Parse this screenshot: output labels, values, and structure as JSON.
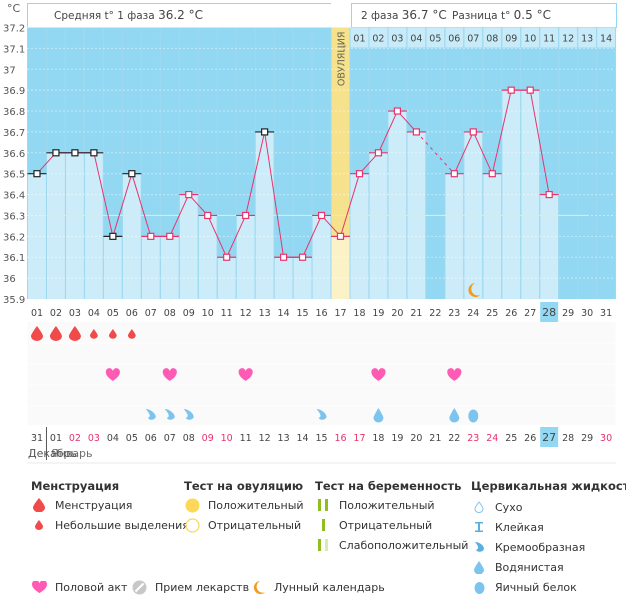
{
  "header": {
    "unit": "°C",
    "phase1_label": "Средняя t° 1 фаза",
    "phase1_value": "36.2 °C",
    "phase2_label": "2 фаза",
    "phase2_value": "36.7 °C",
    "diff_label": "Разница t°",
    "diff_value": "0.5 °C",
    "ovulation_label": "ОВУЛЯЦИЯ"
  },
  "colors": {
    "plot_bg": "#93d8f2",
    "bar_fill": "#ccecfa",
    "line": "#e8336b",
    "coverline": "#f3e9a0",
    "ovulation": "#f6e28c",
    "menstruation": "#f04a4a",
    "heart": "#ff5bb5",
    "fluid": "#7cc4ee",
    "moon": "#f39b1c",
    "weekend": "#e8336b",
    "today": "#93d8f2"
  },
  "chart_data": {
    "type": "line",
    "title": "",
    "ylabel": "°C",
    "ylim": [
      35.9,
      37.2
    ],
    "yticks": [
      "37.2",
      "37.1",
      "37",
      "36.9",
      "36.8",
      "36.7",
      "36.6",
      "36.5",
      "36.4",
      "36.3",
      "36.2",
      "36.1",
      "36",
      "35.9"
    ],
    "cycle_days": [
      "01",
      "02",
      "03",
      "04",
      "05",
      "06",
      "07",
      "08",
      "09",
      "10",
      "11",
      "12",
      "13",
      "14",
      "15",
      "16",
      "17",
      "18",
      "19",
      "20",
      "21",
      "22",
      "23",
      "24",
      "25",
      "26",
      "27",
      "28",
      "29",
      "30",
      "31"
    ],
    "temperatures": [
      36.5,
      36.6,
      36.6,
      36.6,
      36.2,
      36.5,
      36.2,
      36.2,
      36.4,
      36.3,
      36.1,
      36.3,
      36.7,
      36.1,
      36.1,
      36.3,
      36.2,
      36.5,
      36.6,
      36.8,
      36.7,
      null,
      36.5,
      36.7,
      36.5,
      36.9,
      36.9,
      36.4,
      null,
      null,
      null
    ],
    "black_markers_days": [
      1,
      2,
      3,
      4,
      5,
      6,
      13
    ],
    "coverline": 36.3,
    "coverline_until_day": 30,
    "ovulation_day": 17,
    "luteal_days": [
      "01",
      "02",
      "03",
      "04",
      "05",
      "06",
      "07",
      "08",
      "09",
      "10",
      "11",
      "12",
      "13",
      "14"
    ],
    "today_cycle_day": 28,
    "moon_day": 24
  },
  "calendar": {
    "dates": [
      "31",
      "01",
      "02",
      "03",
      "04",
      "05",
      "06",
      "07",
      "08",
      "09",
      "10",
      "11",
      "12",
      "13",
      "14",
      "15",
      "16",
      "17",
      "18",
      "19",
      "20",
      "21",
      "22",
      "23",
      "24",
      "25",
      "26",
      "27",
      "28",
      "29",
      "30"
    ],
    "weekend_days": [
      3,
      4,
      10,
      11,
      17,
      18,
      24,
      25,
      31
    ],
    "today_index": 28,
    "month_prev": "Декабрь",
    "month_next": "Январь"
  },
  "events": {
    "menstruation": [
      {
        "day": 1,
        "type": "heavy"
      },
      {
        "day": 2,
        "type": "heavy"
      },
      {
        "day": 3,
        "type": "heavy"
      },
      {
        "day": 4,
        "type": "light"
      },
      {
        "day": 5,
        "type": "light"
      },
      {
        "day": 6,
        "type": "light"
      }
    ],
    "intercourse_days": [
      5,
      8,
      12,
      19,
      23
    ],
    "fluid": [
      {
        "day": 7,
        "type": "creamy"
      },
      {
        "day": 8,
        "type": "creamy"
      },
      {
        "day": 9,
        "type": "creamy"
      },
      {
        "day": 16,
        "type": "creamy"
      },
      {
        "day": 19,
        "type": "watery"
      },
      {
        "day": 23,
        "type": "watery"
      },
      {
        "day": 24,
        "type": "eggwhite"
      }
    ]
  },
  "legend": {
    "menstruation": {
      "title": "Менструация",
      "items": [
        "Менструация",
        "Небольшие выделения"
      ]
    },
    "ovulation_test": {
      "title": "Тест на овуляцию",
      "items": [
        "Положительный",
        "Отрицательный"
      ]
    },
    "pregnancy_test": {
      "title": "Тест на беременность",
      "items": [
        "Положительный",
        "Отрицательный",
        "Слабоположительный"
      ]
    },
    "cervical_fluid": {
      "title": "Цервикальная жидкость",
      "items": [
        "Сухо",
        "Клейкая",
        "Кремообразная",
        "Водянистая",
        "Яичный белок"
      ]
    },
    "other": [
      "Половой акт",
      "Прием лекарств",
      "Лунный календарь"
    ]
  }
}
